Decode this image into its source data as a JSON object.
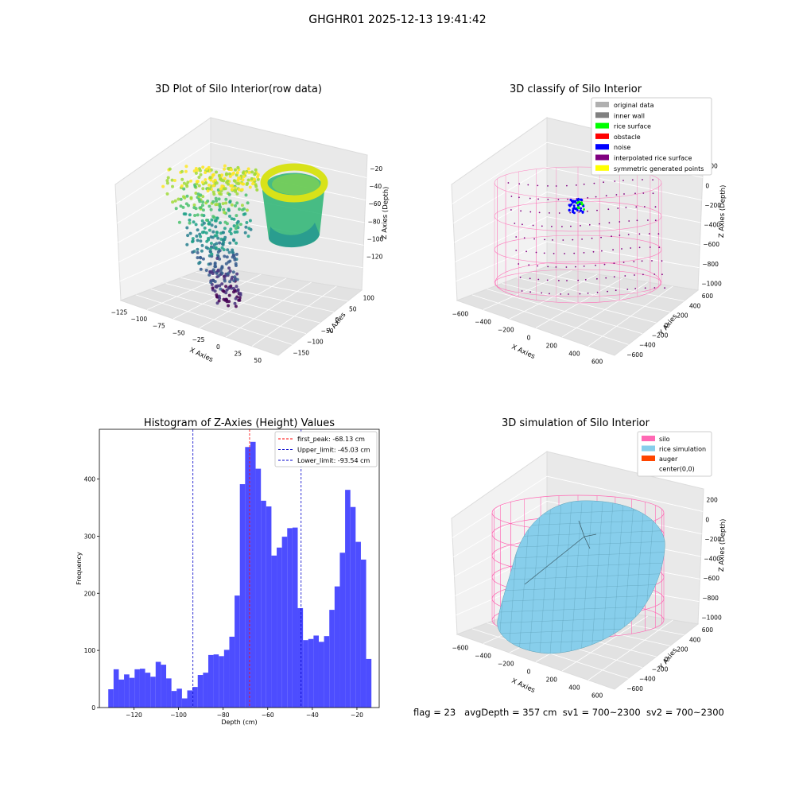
{
  "figure": {
    "suptitle": "GHGHR01 2025-12-13 19:41:42",
    "footer": {
      "flag": "flag = 23",
      "avg_depth": "avgDepth = 357 cm",
      "sv1": "sv1 = 700~2300",
      "sv2": "sv2 = 700~2300"
    }
  },
  "colors": {
    "bar": "#4d4dff",
    "first_peak": "#ff0000",
    "limit": "#0000cc",
    "silo": "#ff69b4",
    "rice": "#87ceeb",
    "auger": "#ff4500",
    "original": "#b0b0b0",
    "inner_wall": "#808080",
    "rice_surface": "#00ff00",
    "obstacle": "#ff0000",
    "noise": "#0000ff",
    "interpolated": "#800080",
    "symmetric": "#ffff00"
  },
  "chart_data": [
    {
      "type": "scatter",
      "projection": "3d",
      "title": "3D Plot of Silo Interior(row data)",
      "xlabel": "X Axies",
      "ylabel": "Y Axies",
      "zlabel": "Z Axies (Depth)",
      "xticks": [
        "−125",
        "−100",
        "−75",
        "−50",
        "−25",
        "0",
        "25",
        "50"
      ],
      "yticks": [
        "100",
        "50",
        "0",
        "−50",
        "−100",
        "−150"
      ],
      "zticks": [
        "−20",
        "−40",
        "−60",
        "−80",
        "−100",
        "−120"
      ],
      "colormap": "viridis",
      "grid": true
    },
    {
      "type": "scatter",
      "projection": "3d",
      "title": "3D classify of Silo Interior",
      "xlabel": "X Axies",
      "ylabel": "Y Axies",
      "zlabel": "Z Axies (Depth)",
      "xticks": [
        "−600",
        "−400",
        "−200",
        "0",
        "200",
        "400",
        "600"
      ],
      "yticks": [
        "600",
        "400",
        "200",
        "0",
        "−200",
        "−400",
        "−600"
      ],
      "zticks": [
        "200",
        "0",
        "−200",
        "−400",
        "−600",
        "−800",
        "−1000"
      ],
      "legend": [
        "original data",
        "inner wall",
        "rice surface",
        "obstacle",
        "noise",
        "interpolated rice surface",
        "symmetric generated points"
      ],
      "legend_position": "top-right",
      "grid": true
    },
    {
      "type": "bar",
      "title": "Histogram of Z-Axies (Height) Values",
      "xlabel": "Depth (cm)",
      "ylabel": "Frequency",
      "xlim": [
        -135.5,
        -10
      ],
      "ylim": [
        0,
        487
      ],
      "bin_width": 2.36,
      "bin_start": -131.5,
      "values": [
        32,
        67,
        49,
        58,
        52,
        67,
        68,
        61,
        54,
        80,
        75,
        51,
        29,
        33,
        16,
        30,
        36,
        57,
        61,
        92,
        93,
        90,
        101,
        124,
        196,
        391,
        456,
        465,
        418,
        362,
        352,
        266,
        280,
        299,
        314,
        315,
        174,
        118,
        120,
        126,
        115,
        125,
        171,
        212,
        271,
        381,
        351,
        290,
        259,
        85
      ],
      "xticks": [
        "−120",
        "−100",
        "−80",
        "−60",
        "−40",
        "−20"
      ],
      "xtick_values": [
        -120,
        -100,
        -80,
        -60,
        -40,
        -20
      ],
      "yticks": [
        "0",
        "100",
        "200",
        "300",
        "400"
      ],
      "ytick_values": [
        0,
        100,
        200,
        300,
        400
      ],
      "lines": [
        {
          "label": "first_peak: -68.13 cm",
          "x": -68.13
        },
        {
          "label": "Upper_limit: -45.03 cm",
          "x": -45.03
        },
        {
          "label": "Lower_limit: -93.54 cm",
          "x": -93.54
        }
      ],
      "legend_position": "top-right",
      "grid": false
    },
    {
      "type": "surface",
      "projection": "3d",
      "title": "3D simulation of Silo Interior",
      "xlabel": "X Axies",
      "ylabel": "Y Axies",
      "zlabel": "Z Axies (Depth)",
      "xticks": [
        "−600",
        "−400",
        "−200",
        "0",
        "200",
        "400",
        "600"
      ],
      "yticks": [
        "600",
        "400",
        "200",
        "0",
        "−200",
        "−400",
        "−600"
      ],
      "zticks": [
        "200",
        "0",
        "−200",
        "−400",
        "−600",
        "−800",
        "−1000"
      ],
      "legend": [
        "silo",
        "rice simulation",
        "auger",
        "center(0,0)"
      ],
      "legend_position": "top-right",
      "grid": true
    }
  ]
}
